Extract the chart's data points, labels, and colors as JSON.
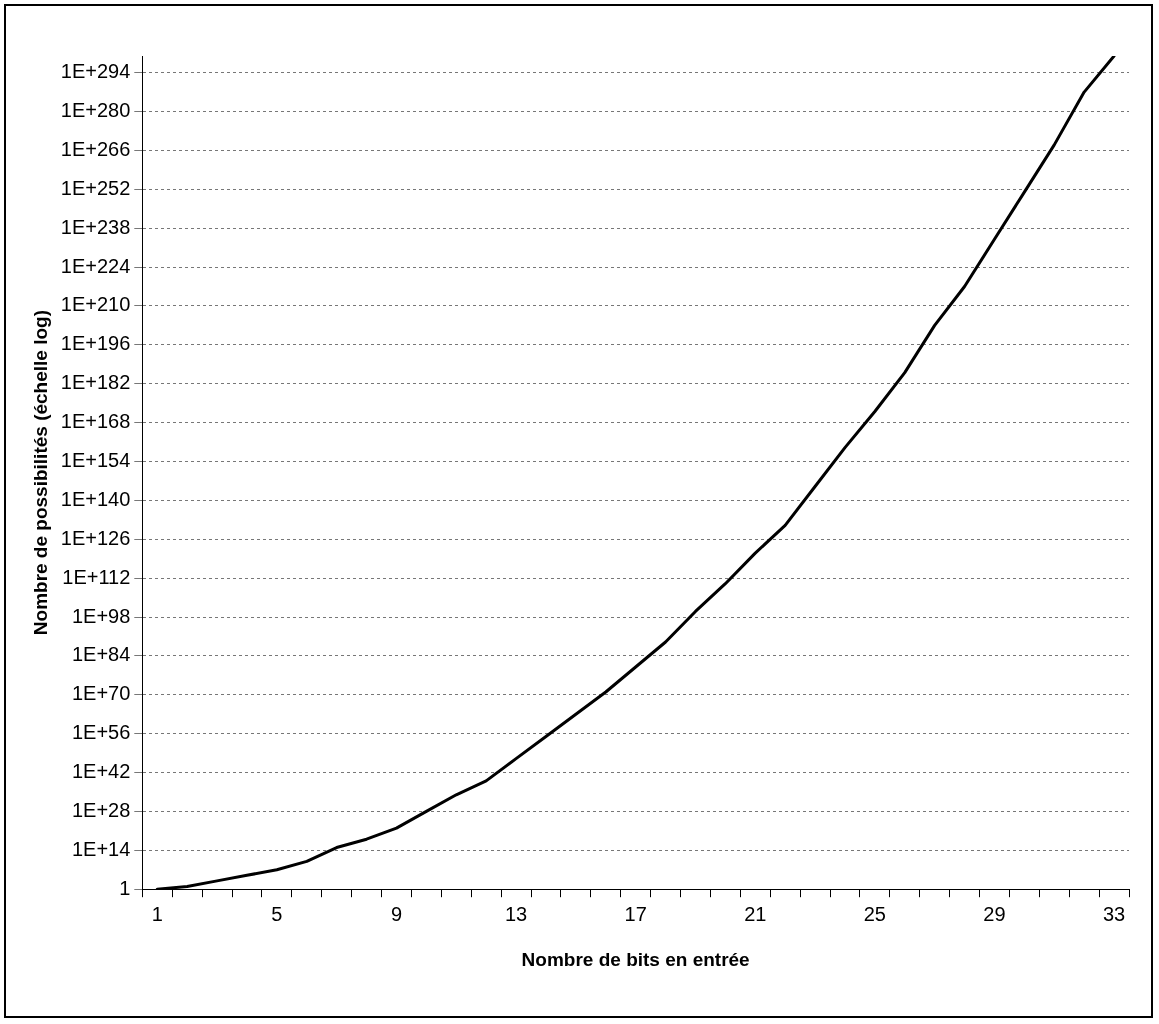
{
  "chart_data": {
    "type": "line",
    "xlabel": "Nombre de bits en entrée",
    "ylabel": "Nombre de possibilités (échelle log)",
    "categories": [
      "1",
      null,
      null,
      null,
      "5",
      null,
      null,
      null,
      "9",
      null,
      null,
      null,
      "13",
      null,
      null,
      null,
      "17",
      null,
      null,
      null,
      "21",
      null,
      null,
      null,
      "25",
      null,
      null,
      null,
      "29",
      null,
      null,
      null,
      "33"
    ],
    "series": [
      {
        "color": "#000000",
        "values": [
          1,
          10.0,
          1000.0,
          100000.0,
          10000000.0,
          10000000000.0,
          1000000000000000.0,
          1e+18,
          1e+22,
          1e+28,
          1e+34,
          1e+39,
          1e+47,
          1e+55,
          1e+63,
          1e+71,
          1e+80,
          1e+89,
          1e+100,
          1e+110,
          1e+121,
          1e+131,
          1e+145,
          1e+159,
          1e+172,
          1e+186,
          1e+203,
          1e+217,
          1e+234,
          1e+251,
          1e+268,
          1e+287,
          1e+300
        ]
      }
    ],
    "log": "y",
    "ylim": [
      1,
      1e+300
    ],
    "yticks": [
      1,
      {
        "value": 100000000000000.0,
        "label": "1E+14"
      },
      {
        "value": 1e+28,
        "label": "1E+28"
      },
      {
        "value": 1e+42,
        "label": "1E+42"
      },
      {
        "value": 1e+56,
        "label": "1E+56"
      },
      {
        "value": 1e+70,
        "label": "1E+70"
      },
      {
        "value": 1e+84,
        "label": "1E+84"
      },
      {
        "value": 1e+98,
        "label": "1E+98"
      },
      {
        "value": 1e+112,
        "label": "1E+112"
      },
      {
        "value": 1e+126,
        "label": "1E+126"
      },
      {
        "value": 1e+140,
        "label": "1E+140"
      },
      {
        "value": 1e+154,
        "label": "1E+154"
      },
      {
        "value": 1e+168,
        "label": "1E+168"
      },
      {
        "value": 1e+182,
        "label": "1E+182"
      },
      {
        "value": 1e+196,
        "label": "1E+196"
      },
      {
        "value": 1e+210,
        "label": "1E+210"
      },
      {
        "value": 1e+224,
        "label": "1E+224"
      },
      {
        "value": 1e+238,
        "label": "1E+238"
      },
      {
        "value": 1e+252,
        "label": "1E+252"
      },
      {
        "value": 1e+266,
        "label": "1E+266"
      },
      {
        "value": 1e+280,
        "label": "1E+280"
      },
      {
        "value": 1e+294,
        "label": "1E+294"
      }
    ],
    "grid": "y",
    "legend": false,
    "marker": "none",
    "line_style": "solid"
  }
}
